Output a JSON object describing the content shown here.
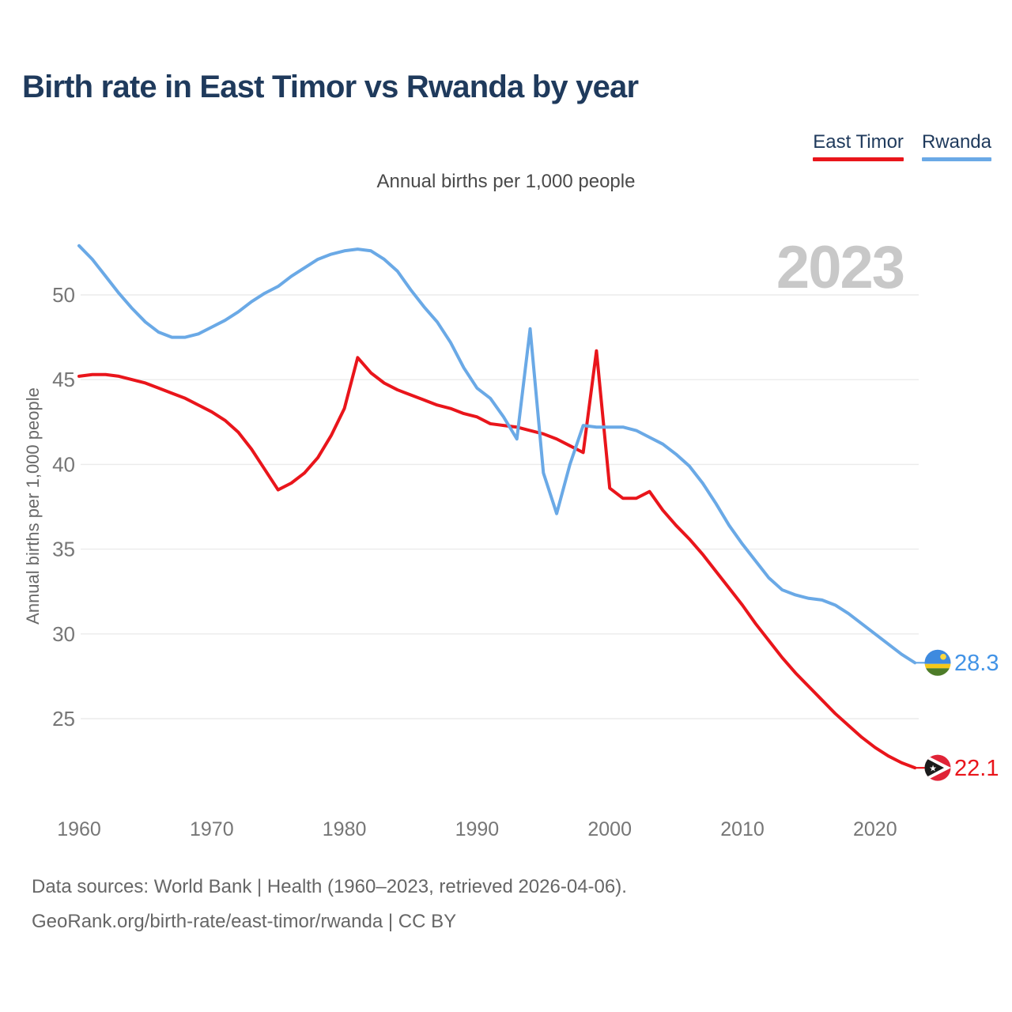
{
  "title": "Birth rate in East Timor vs Rwanda by year",
  "subtitle": "Annual births per 1,000 people",
  "y_axis_label": "Annual births per 1,000 people",
  "watermark": "2023",
  "legend": [
    {
      "label": "East Timor",
      "color": "#e9151b"
    },
    {
      "label": "Rwanda",
      "color": "#6aa9e6"
    }
  ],
  "footer": {
    "line1": "Data sources: World Bank | Health (1960–2023, retrieved 2026-04-06).",
    "line2": "GeoRank.org/birth-rate/east-timor/rwanda | CC BY"
  },
  "colors": {
    "east_timor_line": "#e9151b",
    "rwanda_line": "#6aa9e6",
    "east_timor_label": "#e9151b",
    "rwanda_label": "#4293e6",
    "gridline": "#ebebeb",
    "tick_text": "#767676",
    "watermark": "#c8c8c8"
  },
  "chart_data": {
    "type": "line",
    "title": "Birth rate in East Timor vs Rwanda by year",
    "subtitle": "Annual births per 1,000 people",
    "ylabel": "Annual births per 1,000 people",
    "xlabel": "",
    "grid": true,
    "legend_position": "top-right",
    "xlim": [
      1960,
      2023
    ],
    "ylim": [
      22,
      53.5
    ],
    "xticks": [
      1960,
      1970,
      1980,
      1990,
      2000,
      2010,
      2020
    ],
    "yticks": [
      25,
      30,
      35,
      40,
      45,
      50
    ],
    "x": [
      1960,
      1961,
      1962,
      1963,
      1964,
      1965,
      1966,
      1967,
      1968,
      1969,
      1970,
      1971,
      1972,
      1973,
      1974,
      1975,
      1976,
      1977,
      1978,
      1979,
      1980,
      1981,
      1982,
      1983,
      1984,
      1985,
      1986,
      1987,
      1988,
      1989,
      1990,
      1991,
      1992,
      1993,
      1994,
      1995,
      1996,
      1997,
      1998,
      1999,
      2000,
      2001,
      2002,
      2003,
      2004,
      2005,
      2006,
      2007,
      2008,
      2009,
      2010,
      2011,
      2012,
      2013,
      2014,
      2015,
      2016,
      2017,
      2018,
      2019,
      2020,
      2021,
      2022,
      2023
    ],
    "series": [
      {
        "name": "East Timor",
        "color": "#e9151b",
        "end_label": "22.1",
        "flag": "east-timor",
        "values": [
          45.2,
          45.3,
          45.3,
          45.2,
          45.0,
          44.8,
          44.5,
          44.2,
          43.9,
          43.5,
          43.1,
          42.6,
          41.9,
          40.9,
          39.7,
          38.5,
          38.9,
          39.5,
          40.4,
          41.7,
          43.3,
          46.3,
          45.4,
          44.8,
          44.4,
          44.1,
          43.8,
          43.5,
          43.3,
          43.0,
          42.8,
          42.4,
          42.3,
          42.2,
          42.0,
          41.8,
          41.5,
          41.1,
          40.7,
          46.7,
          38.6,
          38.0,
          38.0,
          38.4,
          37.3,
          36.4,
          35.6,
          34.7,
          33.7,
          32.7,
          31.7,
          30.6,
          29.6,
          28.6,
          27.7,
          26.9,
          26.1,
          25.3,
          24.6,
          23.9,
          23.3,
          22.8,
          22.4,
          22.1
        ]
      },
      {
        "name": "Rwanda",
        "color": "#6aa9e6",
        "end_label": "28.3",
        "flag": "rwanda",
        "values": [
          52.9,
          52.1,
          51.1,
          50.1,
          49.2,
          48.4,
          47.8,
          47.5,
          47.5,
          47.7,
          48.1,
          48.5,
          49.0,
          49.6,
          50.1,
          50.5,
          51.1,
          51.6,
          52.1,
          52.4,
          52.6,
          52.7,
          52.6,
          52.1,
          51.4,
          50.3,
          49.3,
          48.4,
          47.2,
          45.7,
          44.5,
          43.9,
          42.8,
          41.5,
          48.0,
          39.5,
          37.1,
          40.0,
          42.3,
          42.2,
          42.2,
          42.2,
          42.0,
          41.6,
          41.2,
          40.6,
          39.9,
          38.9,
          37.7,
          36.4,
          35.3,
          34.3,
          33.3,
          32.6,
          32.3,
          32.1,
          32.0,
          31.7,
          31.2,
          30.6,
          30.0,
          29.4,
          28.8,
          28.3
        ]
      }
    ]
  }
}
